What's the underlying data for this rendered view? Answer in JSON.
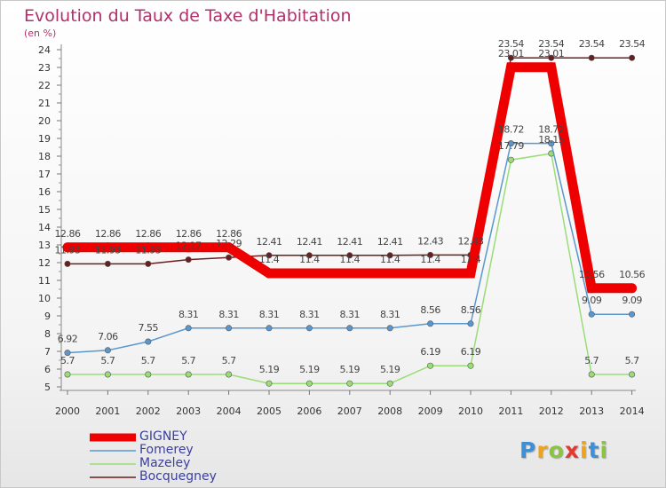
{
  "title": "Evolution du Taux de Taxe d'Habitation",
  "subtitle": "(en %)",
  "logo": {
    "letters": [
      "P",
      "r",
      "o",
      "x",
      "i",
      "t",
      "i"
    ],
    "colors": [
      "#3d8fd6",
      "#f0a21c",
      "#8bc43f",
      "#e23a30",
      "#f0a21c",
      "#3d8fd6",
      "#8bc43f"
    ]
  },
  "chart_data": {
    "type": "line",
    "title": "Evolution du Taux de Taxe d'Habitation",
    "ylabel": "(en %)",
    "xlabel": "",
    "x": [
      "2000",
      "2001",
      "2002",
      "2003",
      "2004",
      "2005",
      "2006",
      "2007",
      "2008",
      "2009",
      "2010",
      "2011",
      "2012",
      "2013",
      "2014"
    ],
    "ylim": [
      5,
      24
    ],
    "yticks": [
      5,
      6,
      7,
      8,
      9,
      10,
      11,
      12,
      13,
      14,
      15,
      16,
      17,
      18,
      19,
      20,
      21,
      22,
      23,
      24
    ],
    "grid": false,
    "legend_position": "bottom-left",
    "series": [
      {
        "name": "GIGNEY",
        "color": "#ee0000",
        "values": [
          12.86,
          12.86,
          12.86,
          12.86,
          12.86,
          11.4,
          11.4,
          11.4,
          11.4,
          11.4,
          11.4,
          23.01,
          23.01,
          10.56,
          10.56
        ],
        "labels": [
          "12.86",
          "12.86",
          "12.86",
          "12.86",
          "12.86",
          "11.4",
          "11.4",
          "11.4",
          "11.4",
          "11.4",
          "11.4",
          "23.01",
          "23.01",
          "10.56",
          "10.56"
        ]
      },
      {
        "name": "Fomerey",
        "color": "#5a97cf",
        "values": [
          6.92,
          7.06,
          7.55,
          8.31,
          8.31,
          8.31,
          8.31,
          8.31,
          8.31,
          8.56,
          8.56,
          18.72,
          18.72,
          9.09,
          9.09
        ],
        "labels": [
          "6.92",
          "7.06",
          "7.55",
          "8.31",
          "8.31",
          "8.31",
          "8.31",
          "8.31",
          "8.31",
          "8.56",
          "8.56",
          "18.72",
          "18.72",
          "9.09",
          "9.09"
        ]
      },
      {
        "name": "Mazeley",
        "color": "#99dd77",
        "values": [
          5.7,
          5.7,
          5.7,
          5.7,
          5.7,
          5.19,
          5.19,
          5.19,
          5.19,
          6.19,
          6.19,
          17.79,
          18.15,
          5.7,
          5.7
        ],
        "labels": [
          "5.7",
          "5.7",
          "5.7",
          "5.7",
          "5.7",
          "5.19",
          "5.19",
          "5.19",
          "5.19",
          "6.19",
          "6.19",
          "17.79",
          "18.15",
          "5.7",
          "5.7"
        ]
      },
      {
        "name": "Bocquegney",
        "color": "#6b1e1e",
        "values": [
          11.93,
          11.93,
          11.93,
          12.17,
          12.29,
          12.41,
          12.41,
          12.41,
          12.41,
          12.43,
          12.43,
          23.54,
          23.54,
          23.54,
          23.54
        ],
        "labels": [
          "11.93",
          "11.93",
          "11.93",
          "12.17",
          "12.29",
          "12.41",
          "12.41",
          "12.41",
          "12.41",
          "12.43",
          "12.43",
          "23.54",
          "23.54",
          "23.54",
          "23.54"
        ]
      }
    ]
  }
}
